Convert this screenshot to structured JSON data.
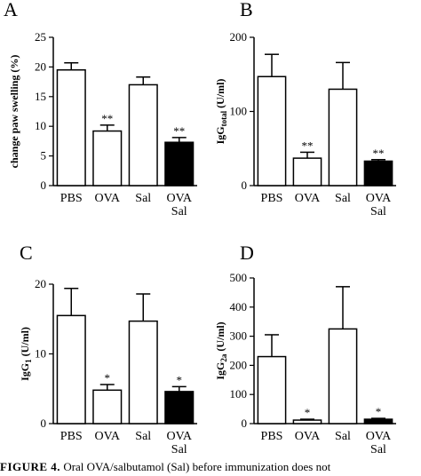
{
  "chart_data": [
    {
      "type": "bar",
      "panel": "A",
      "ylabel": "change paw swelling (%)",
      "ylim": [
        0,
        25
      ],
      "yticks": [
        "0",
        "5",
        "10",
        "15",
        "20",
        "25"
      ],
      "categories": [
        [
          "PBS"
        ],
        [
          "OVA"
        ],
        [
          "Sal"
        ],
        [
          "OVA",
          "Sal"
        ]
      ],
      "values": [
        19.5,
        9.2,
        17.0,
        7.3
      ],
      "errors": [
        1.2,
        1.0,
        1.3,
        0.8
      ],
      "fills": [
        "#ffffff",
        "#ffffff",
        "#ffffff",
        "#000000"
      ],
      "annotations": [
        "",
        "**",
        "",
        "**"
      ]
    },
    {
      "type": "bar",
      "panel": "B",
      "ylabel_main": "IgG",
      "ylabel_sub": "total",
      "ylabel_unit": " (U/ml)",
      "ylim": [
        0,
        200
      ],
      "yticks": [
        "0",
        "100",
        "200"
      ],
      "categories": [
        [
          "PBS"
        ],
        [
          "OVA"
        ],
        [
          "Sal"
        ],
        [
          "OVA",
          "Sal"
        ]
      ],
      "values": [
        147,
        37,
        130,
        33
      ],
      "errors": [
        30,
        8,
        36,
        2
      ],
      "fills": [
        "#ffffff",
        "#ffffff",
        "#ffffff",
        "#000000"
      ],
      "annotations": [
        "",
        "**",
        "",
        "**"
      ]
    },
    {
      "type": "bar",
      "panel": "C",
      "ylabel_main": "IgG",
      "ylabel_sub": "1",
      "ylabel_unit": " (U/ml)",
      "ylim": [
        0,
        20
      ],
      "yticks": [
        "0",
        "10",
        "20"
      ],
      "categories": [
        [
          "PBS"
        ],
        [
          "OVA"
        ],
        [
          "Sal"
        ],
        [
          "OVA",
          "Sal"
        ]
      ],
      "values": [
        15.5,
        4.8,
        14.7,
        4.6
      ],
      "errors": [
        3.9,
        0.8,
        3.9,
        0.7
      ],
      "fills": [
        "#ffffff",
        "#ffffff",
        "#ffffff",
        "#000000"
      ],
      "annotations": [
        "",
        "*",
        "",
        "*"
      ]
    },
    {
      "type": "bar",
      "panel": "D",
      "ylabel_main": "IgG",
      "ylabel_sub": "2a",
      "ylabel_unit": " (U/ml)",
      "ylim": [
        0,
        500
      ],
      "yticks": [
        "0",
        "100",
        "200",
        "300",
        "400",
        "500"
      ],
      "categories": [
        [
          "PBS"
        ],
        [
          "OVA"
        ],
        [
          "Sal"
        ],
        [
          "OVA",
          "Sal"
        ]
      ],
      "values": [
        230,
        12,
        325,
        15
      ],
      "errors": [
        75,
        3,
        145,
        3
      ],
      "fills": [
        "#ffffff",
        "#ffffff",
        "#ffffff",
        "#000000"
      ],
      "annotations": [
        "",
        "*",
        "",
        "*"
      ]
    }
  ],
  "caption": {
    "label": "FIGURE 4.",
    "text": "Oral OVA/salbutamol (Sal) before immunization does not"
  }
}
